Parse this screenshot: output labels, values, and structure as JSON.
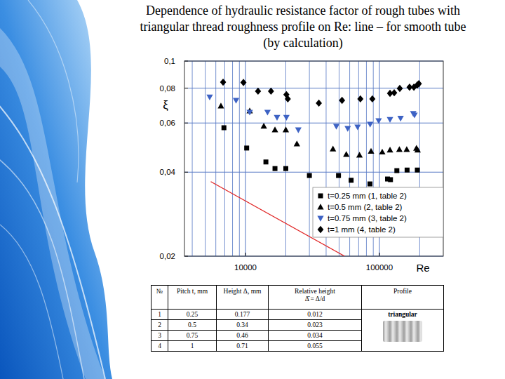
{
  "chart_data": {
    "type": "scatter",
    "title": "Dependence of hydraulic resistance factor of rough tubes with triangular thread roughness profile on Re: line – for smooth tube (by calculation)",
    "x_label": "Re",
    "y_label": "ξ",
    "log": true,
    "grid": true,
    "legend": "lower right",
    "xlim": [
      3500,
      300000
    ],
    "ylim": [
      0.02,
      0.1
    ],
    "xticks": [
      10000,
      100000
    ],
    "yticks": [
      {
        "value": 0.02,
        "label": "0,02"
      },
      {
        "value": 0.04,
        "label": "0,04"
      },
      {
        "value": 0.06,
        "label": "0,06"
      },
      {
        "value": 0.08,
        "label": "0,08"
      },
      {
        "value": 0.1,
        "label": "0,1"
      }
    ],
    "series": [
      {
        "name": "t=0.25 mm (1, table 2)",
        "color": "#000000",
        "marker": "square",
        "x": [
          6900,
          10200,
          14200,
          16600,
          20000,
          30000,
          49500,
          61500,
          85000,
          115000,
          121000,
          135000,
          161000,
          192000
        ],
        "values": [
          0.0577,
          0.0488,
          0.0435,
          0.0412,
          0.0412,
          0.0389,
          0.0389,
          0.0374,
          0.0363,
          0.0378,
          0.0376,
          0.0405,
          0.0407,
          0.0407
        ]
      },
      {
        "name": "t=0.5 mm (2, table 2)",
        "color": "#000000",
        "marker": "triangle-up",
        "x": [
          6550,
          10750,
          13700,
          16600,
          20000,
          24200,
          45000,
          56600,
          71000,
          86600,
          105000,
          120000,
          141000,
          160000,
          189000,
          193000
        ],
        "values": [
          0.069,
          0.0663,
          0.0584,
          0.0567,
          0.0567,
          0.0505,
          0.0484,
          0.0463,
          0.046,
          0.0475,
          0.0472,
          0.048,
          0.0482,
          0.0482,
          0.0487,
          0.048
        ]
      },
      {
        "name": "t=0.75 mm (3, table 2)",
        "color": "#3d62c4",
        "marker": "triangle-down",
        "x": [
          5400,
          8500,
          10750,
          14600,
          17200,
          20200,
          24800,
          47700,
          58000,
          68700,
          85300,
          98700,
          120000,
          144000,
          179000,
          183000
        ],
        "values": [
          0.0744,
          0.0723,
          0.0656,
          0.0656,
          0.0629,
          0.0629,
          0.0567,
          0.0584,
          0.0574,
          0.0581,
          0.0594,
          0.0612,
          0.0618,
          0.0624,
          0.0649,
          0.0641
        ]
      },
      {
        "name": "t=1 mm (4, table 2)",
        "color": "#000000",
        "marker": "diamond",
        "x": [
          6800,
          9650,
          12400,
          15500,
          20200,
          20700,
          35300,
          52600,
          72100,
          88600,
          120000,
          129000,
          142000,
          168000,
          181000,
          192000,
          197000
        ],
        "values": [
          0.084,
          0.0838,
          0.078,
          0.078,
          0.0758,
          0.0732,
          0.0707,
          0.0723,
          0.0732,
          0.0732,
          0.0766,
          0.077,
          0.0798,
          0.0806,
          0.0806,
          0.0821,
          0.083
        ]
      },
      {
        "type": "line",
        "color": "#e02424",
        "line_style": "solid",
        "x": [
          5500,
          55000
        ],
        "values": [
          0.037,
          0.02
        ]
      }
    ]
  },
  "table": {
    "header": [
      [
        "№"
      ],
      [
        "Pitch t, mm"
      ],
      [
        "Height Δ, mm"
      ],
      [
        "Relative height",
        "Δ̄ = Δ/d"
      ],
      [
        "Profile"
      ]
    ],
    "rows": [
      [
        1,
        0.25,
        0.177,
        0.012
      ],
      [
        2,
        0.5,
        0.34,
        0.023
      ],
      [
        3,
        0.75,
        0.46,
        0.034
      ],
      [
        4,
        1,
        0.71,
        0.055
      ]
    ],
    "profile": "triangular"
  }
}
